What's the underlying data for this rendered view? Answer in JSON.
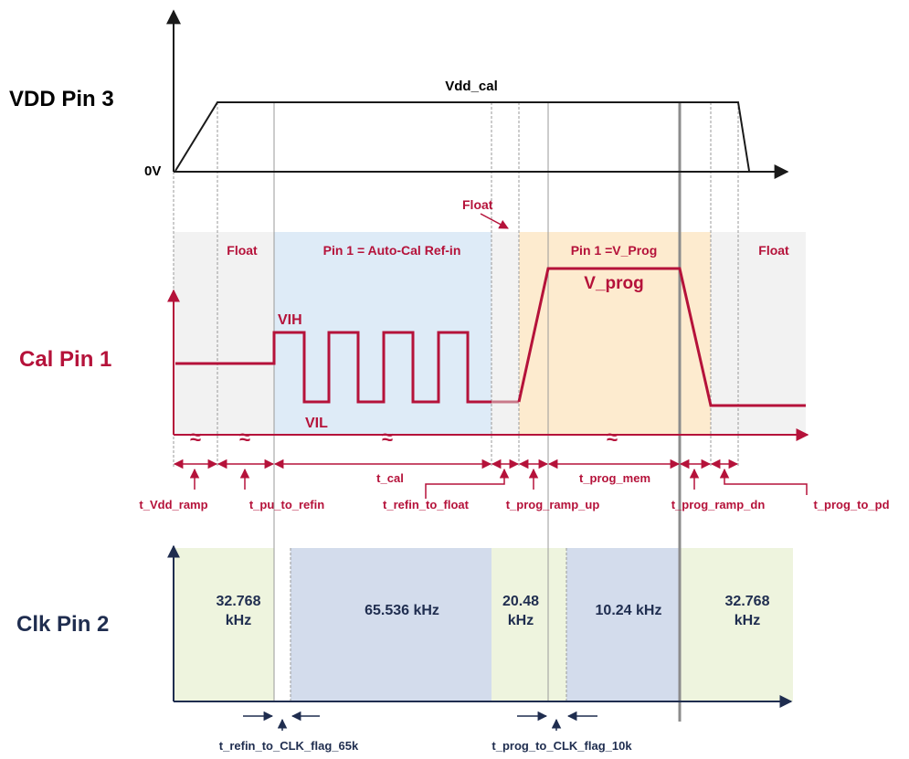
{
  "colors": {
    "red": "#b5123a",
    "navy": "#1f2d4f",
    "axis": "#1a1a1a",
    "gray_band": "#f2f2f2",
    "blue_band": "#deebf7",
    "orange_band": "#fdebcf",
    "green_band": "#eef4de",
    "navy_band": "#d3dcec",
    "dashed_guides": "#9a9a9a",
    "thick_guide": "#8c8c8c"
  },
  "vdd": {
    "label": "VDD Pin 3",
    "level_label": "Vdd_cal",
    "zero_label": "0V"
  },
  "cal": {
    "label": "Cal Pin 1",
    "float_note": "Float",
    "regions": [
      "Float",
      "Pin 1 = Auto-Cal Ref-in",
      "Pin 1 =V_Prog",
      "Float"
    ],
    "vih": "VIH",
    "vil": "VIL",
    "vprog": "V_prog",
    "break_mark": "≈"
  },
  "timing": {
    "t_vdd_ramp": "t_Vdd_ramp",
    "t_pu_to_refin": "t_pu_to_refin",
    "t_cal": "t_cal",
    "t_refin_to_float": "t_refin_to_float",
    "t_prog_ramp_up": "t_prog_ramp_up",
    "t_prog_mem": "t_prog_mem",
    "t_prog_ramp_dn": "t_prog_ramp_dn",
    "t_prog_to_pd": "t_prog_to_pd"
  },
  "clk": {
    "label": "Clk Pin 2",
    "freq1_a": "32.768",
    "freq1_b": "kHz",
    "freq2": "65.536 kHz",
    "freq3_a": "20.48",
    "freq3_b": "kHz",
    "freq4": "10.24 kHz",
    "freq5_a": "32.768",
    "freq5_b": "kHz",
    "flag_65k": "t_refin_to_CLK_flag_65k",
    "flag_10k": "t_prog_to_CLK_flag_10k"
  }
}
